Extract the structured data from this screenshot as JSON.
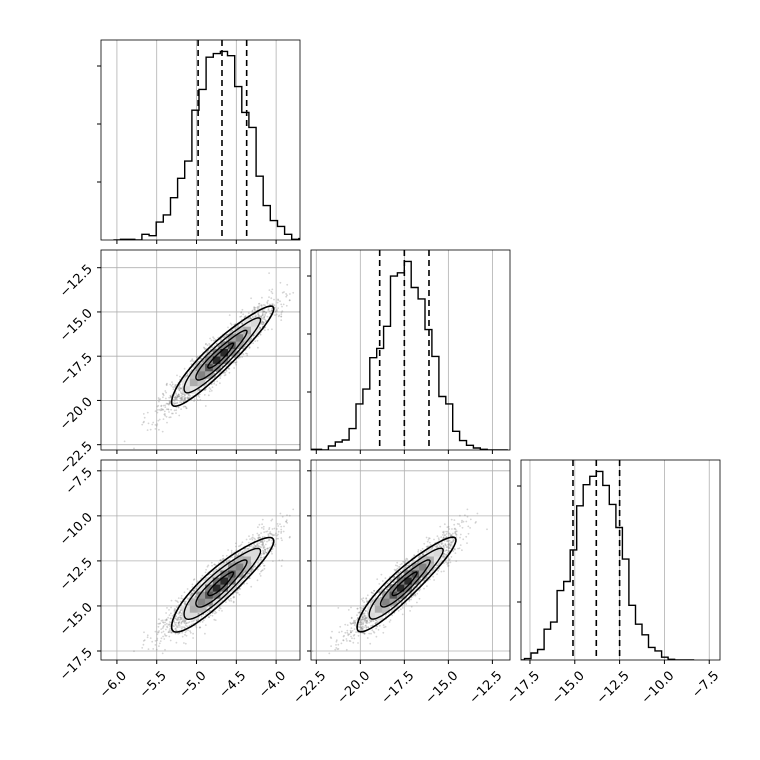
{
  "chart_data": {
    "type": "corner",
    "title": "",
    "grid": true,
    "parameters": [
      {
        "xlim": [
          -6.2,
          -3.7
        ],
        "ticks": [
          -6.0,
          -5.5,
          -5.0,
          -4.5,
          -4.0
        ],
        "tick_labels": [
          "−6.0",
          "−5.5",
          "−5.0",
          "−4.5",
          "−4.0"
        ],
        "quantiles": [
          -4.98,
          -4.68,
          -4.37
        ],
        "center": -4.7,
        "sigma": 0.32
      },
      {
        "xlim": [
          -22.8,
          -11.5
        ],
        "ticks": [
          -22.5,
          -20.0,
          -17.5,
          -15.0,
          -12.5
        ],
        "tick_labels": [
          "−22.5",
          "−20.0",
          "−17.5",
          "−15.0",
          "−12.5"
        ],
        "quantiles": [
          -18.9,
          -17.5,
          -16.1
        ],
        "center": -17.5,
        "sigma": 1.4
      },
      {
        "xlim": [
          -18.0,
          -6.9
        ],
        "ticks": [
          -17.5,
          -15.0,
          -12.5,
          -10.0,
          -7.5
        ],
        "tick_labels": [
          "−17.5",
          "−15.0",
          "−12.5",
          "−10.0",
          "−7.5"
        ],
        "quantiles": [
          -15.1,
          -13.8,
          -12.5
        ],
        "center": -13.8,
        "sigma": 1.3
      }
    ],
    "y_axes": [
      {
        "row": 1,
        "ylim": [
          -22.8,
          -11.5
        ],
        "ticks": [
          -22.5,
          -20.0,
          -17.5,
          -15.0,
          -12.5
        ],
        "tick_labels": [
          "−22.5",
          "−20.0",
          "−17.5",
          "−15.0",
          "−12.5"
        ]
      },
      {
        "row": 2,
        "ylim": [
          -18.0,
          -6.9
        ],
        "ticks": [
          -17.5,
          -15.0,
          -12.5,
          -10.0,
          -7.5
        ],
        "tick_labels": [
          "−17.5",
          "−15.0",
          "−12.5",
          "−10.0",
          "−7.5"
        ]
      }
    ],
    "correlations": {
      "1_0": 0.93,
      "2_0": 0.9,
      "2_1": 0.92
    },
    "histogram_bins": 20,
    "contour_levels": [
      0.5,
      1.0,
      1.5,
      2.0
    ],
    "colors": {
      "line": "#000000",
      "grid": "#b0b0b0",
      "points": "#888888"
    }
  }
}
